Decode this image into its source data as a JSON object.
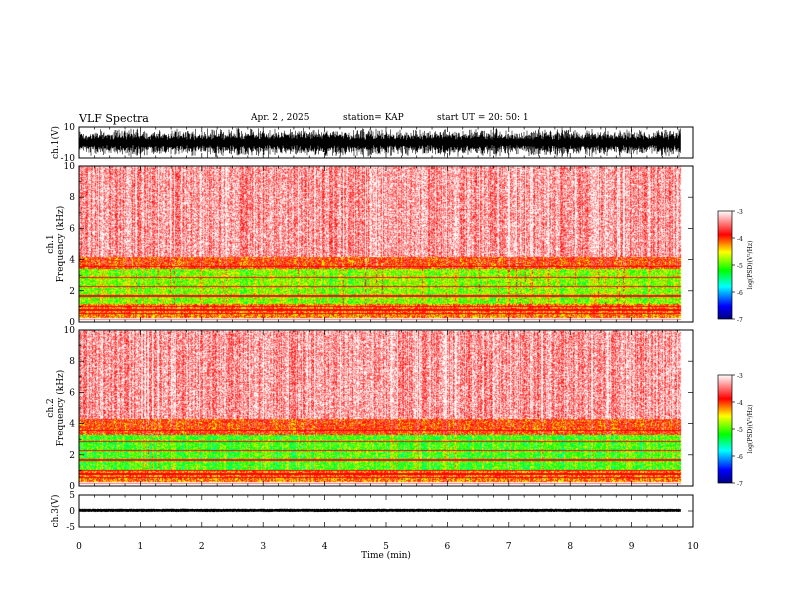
{
  "header": {
    "title": "VLF Spectra",
    "date": "Apr. 2 , 2025",
    "station": "station= KAP",
    "start": "start UT =   20: 50: 1"
  },
  "chart_data": [
    {
      "type": "line",
      "name": "ch1-waveform",
      "ylabel": "ch.1(V)",
      "ylim": [
        -10,
        10
      ],
      "yticks": [
        "10",
        "-10"
      ],
      "xlim": [
        0,
        10
      ]
    },
    {
      "type": "heatmap",
      "name": "ch1-spectrogram",
      "ylabel": "ch.1\nFrequency (kHz)",
      "ylim": [
        0,
        10
      ],
      "yticks": [
        "10",
        "8",
        "6",
        "4",
        "2",
        "0"
      ],
      "xlim": [
        0,
        10
      ],
      "data_end_min": 9.8,
      "bands_khz": [
        {
          "from": 0.3,
          "to": 1.2,
          "level": -4.3
        },
        {
          "from": 1.2,
          "to": 3.4,
          "level": -4.9
        },
        {
          "from": 3.4,
          "to": 4.2,
          "level": -4.1
        },
        {
          "from": 4.2,
          "to": 10.0,
          "level": -3.4
        }
      ],
      "colorbar": {
        "min": -7,
        "max": -3,
        "ticks": [
          "-3",
          "-4",
          "-5",
          "-6",
          "-7"
        ],
        "label": "log(PSD)(V²/Hz)"
      }
    },
    {
      "type": "heatmap",
      "name": "ch2-spectrogram",
      "ylabel": "ch.2\nFrequency (kHz)",
      "ylim": [
        0,
        10
      ],
      "yticks": [
        "10",
        "8",
        "6",
        "4",
        "2",
        "0"
      ],
      "xlim": [
        0,
        10
      ],
      "data_end_min": 9.8,
      "bands_khz": [
        {
          "from": 0.3,
          "to": 1.0,
          "level": -4.3
        },
        {
          "from": 1.0,
          "to": 3.3,
          "level": -5.1
        },
        {
          "from": 3.3,
          "to": 4.3,
          "level": -4.1
        },
        {
          "from": 4.3,
          "to": 10.0,
          "level": -3.4
        }
      ],
      "colorbar": {
        "min": -7,
        "max": -3,
        "ticks": [
          "-3",
          "-4",
          "-5",
          "-6",
          "-7"
        ],
        "label": "log(PSD)(V²/Hz)"
      }
    },
    {
      "type": "line",
      "name": "ch3-waveform",
      "ylabel": "ch.3(V)",
      "ylim": [
        -5,
        5
      ],
      "yticks": [
        "5",
        "0",
        "-5"
      ],
      "level_v": 0.2,
      "xlim": [
        0,
        10
      ],
      "xticks": [
        "0",
        "1",
        "2",
        "3",
        "4",
        "5",
        "6",
        "7",
        "8",
        "9",
        "10"
      ],
      "xlabel": "Time (min)"
    }
  ],
  "colors": {
    "axis": "#000000",
    "waveform": "#000000",
    "colormap": [
      "#000080",
      "#0000ff",
      "#00ffff",
      "#00ff00",
      "#ffff00",
      "#ff0000",
      "#ffffff"
    ]
  }
}
